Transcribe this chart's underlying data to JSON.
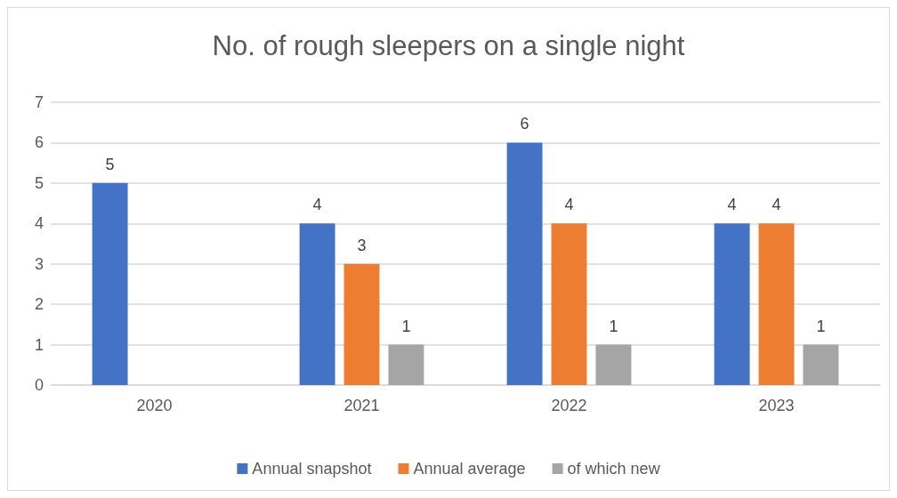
{
  "chart_data": {
    "type": "bar",
    "title": "No. of rough sleepers on a single night",
    "categories": [
      "2020",
      "2021",
      "2022",
      "2023"
    ],
    "series": [
      {
        "name": "Annual snapshot",
        "color": "#4472c4",
        "values": [
          5,
          4,
          6,
          4
        ]
      },
      {
        "name": "Annual average",
        "color": "#ed7d31",
        "values": [
          null,
          3,
          4,
          4
        ]
      },
      {
        "name": "of which new",
        "color": "#a5a5a5",
        "values": [
          null,
          1,
          1,
          1
        ]
      }
    ],
    "ylim": [
      0,
      7
    ],
    "yticks": [
      0,
      1,
      2,
      3,
      4,
      5,
      6,
      7
    ],
    "grid": "y",
    "legend": "bottom",
    "data_labels": true
  }
}
